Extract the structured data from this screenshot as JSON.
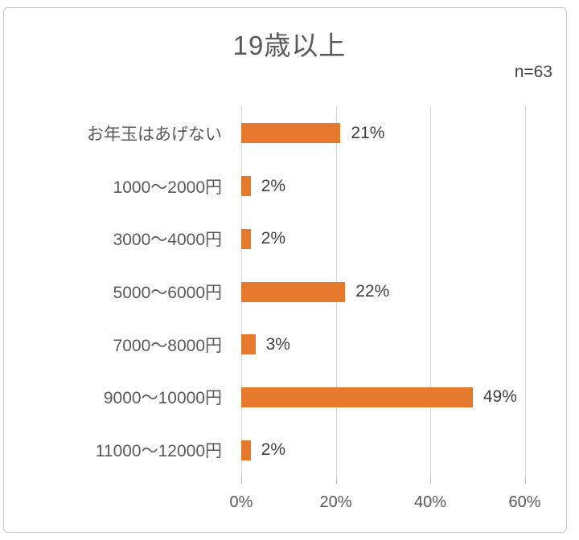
{
  "header": {
    "title": "19歳以上",
    "sample_size_label": "n=63"
  },
  "chart_data": {
    "type": "bar",
    "orientation": "horizontal",
    "title": "19歳以上",
    "sample_size": "n=63",
    "categories": [
      "お年玉はあげない",
      "1000〜2000円",
      "3000〜4000円",
      "5000〜6000円",
      "7000〜8000円",
      "9000〜10000円",
      "11000〜12000円"
    ],
    "values": [
      21,
      2,
      2,
      22,
      3,
      49,
      2
    ],
    "value_labels": [
      "21%",
      "2%",
      "2%",
      "22%",
      "3%",
      "49%",
      "2%"
    ],
    "xlabel": "",
    "ylabel": "",
    "xlim": [
      0,
      60
    ],
    "x_ticks": [
      {
        "value": 0,
        "label": "0%"
      },
      {
        "value": 20,
        "label": "20%"
      },
      {
        "value": 40,
        "label": "40%"
      },
      {
        "value": 60,
        "label": "60%"
      }
    ],
    "legend": "none",
    "grid": "vertical",
    "colors": {
      "bar": "#e5792e",
      "gridline": "#d9d9d9",
      "tick_mark": "#bfbfbf",
      "axis_text": "#595959",
      "category_text": "#595959",
      "value_text": "#3f3f3f",
      "title_text": "#595959",
      "frame_border": "#c9c9c9"
    }
  }
}
